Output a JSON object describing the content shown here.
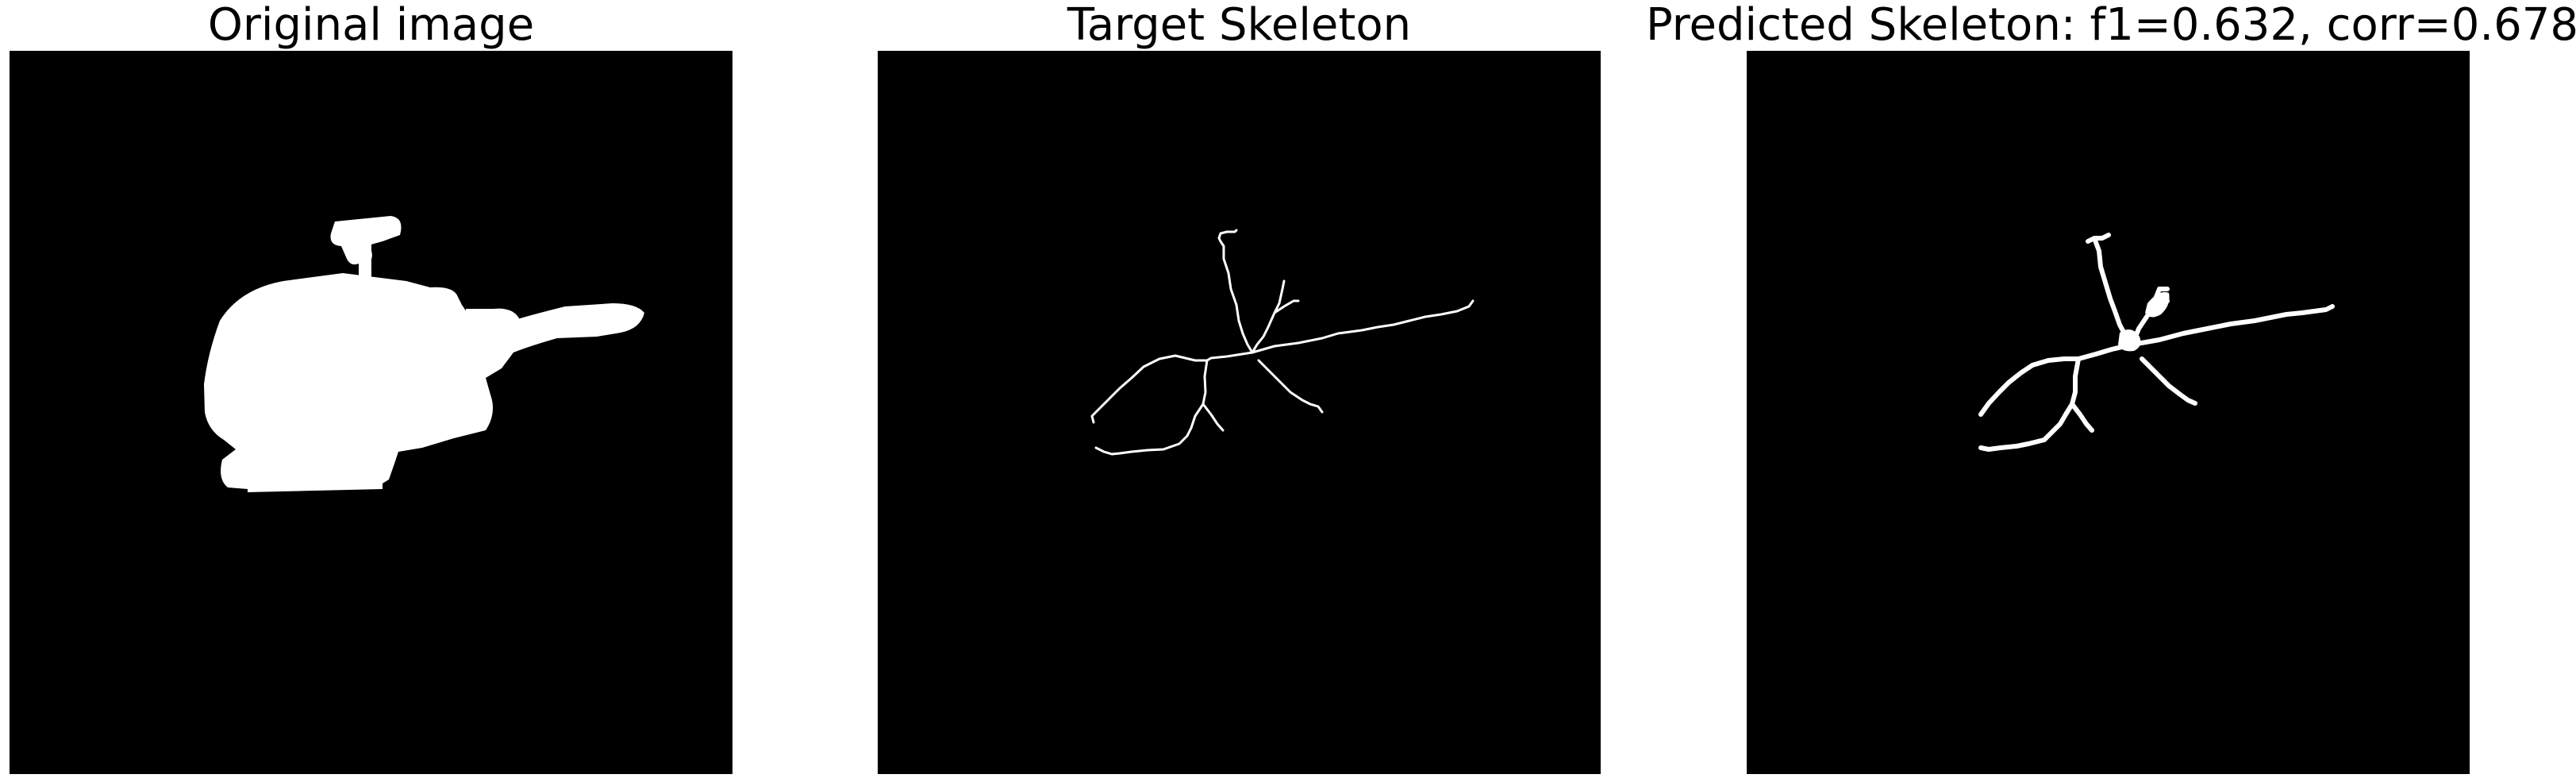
{
  "panels": [
    {
      "title": "Original image"
    },
    {
      "title": "Target Skeleton"
    },
    {
      "title": "Predicted Skeleton: f1=0.632, corr=0.678"
    }
  ],
  "colors": {
    "background": "#ffffff",
    "image_background": "#000000",
    "foreground": "#ffffff"
  }
}
